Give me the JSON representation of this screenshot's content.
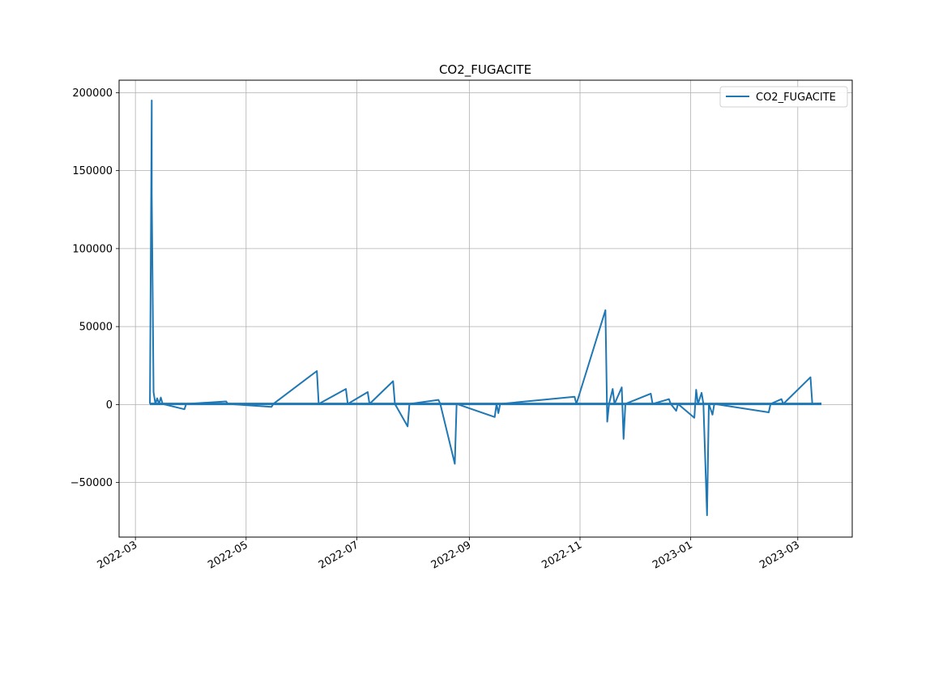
{
  "chart_data": {
    "type": "line",
    "title": "CO2_FUGACITE",
    "xlabel": "",
    "ylabel": "",
    "xlim": [
      "2022-02-20",
      "2023-03-31"
    ],
    "ylim": [
      -85000,
      208000
    ],
    "grid": true,
    "legend_position": "top-right",
    "x_ticks": [
      "2022-03",
      "2022-05",
      "2022-07",
      "2022-09",
      "2022-11",
      "2023-01",
      "2023-03"
    ],
    "x_tick_dates": [
      "2022-03-01",
      "2022-05-01",
      "2022-07-01",
      "2022-09-01",
      "2022-11-01",
      "2023-01-01",
      "2023-03-01"
    ],
    "y_ticks": [
      -50000,
      0,
      50000,
      100000,
      150000,
      200000
    ],
    "series": [
      {
        "name": "CO2_FUGACITE",
        "color": "#1f77b4",
        "points": [
          [
            "2022-03-09",
            400
          ],
          [
            "2022-03-10",
            195000
          ],
          [
            "2022-03-10",
            135000
          ],
          [
            "2022-03-11",
            8000
          ],
          [
            "2022-03-12",
            400
          ],
          [
            "2022-03-13",
            4000
          ],
          [
            "2022-03-14",
            400
          ],
          [
            "2022-03-15",
            4500
          ],
          [
            "2022-03-16",
            400
          ],
          [
            "2022-03-28",
            -3000
          ],
          [
            "2022-03-29",
            400
          ],
          [
            "2022-04-20",
            2000
          ],
          [
            "2022-04-21",
            400
          ],
          [
            "2022-05-15",
            -1500
          ],
          [
            "2022-05-16",
            400
          ],
          [
            "2022-06-09",
            21500
          ],
          [
            "2022-06-10",
            400
          ],
          [
            "2022-06-25",
            10000
          ],
          [
            "2022-06-26",
            400
          ],
          [
            "2022-07-07",
            8000
          ],
          [
            "2022-07-08",
            400
          ],
          [
            "2022-07-21",
            15000
          ],
          [
            "2022-07-22",
            400
          ],
          [
            "2022-07-29",
            -14000
          ],
          [
            "2022-07-30",
            400
          ],
          [
            "2022-08-15",
            3000
          ],
          [
            "2022-08-16",
            400
          ],
          [
            "2022-08-24",
            -38000
          ],
          [
            "2022-08-25",
            400
          ],
          [
            "2022-09-15",
            -8000
          ],
          [
            "2022-09-16",
            400
          ],
          [
            "2022-09-17",
            -5500
          ],
          [
            "2022-09-18",
            400
          ],
          [
            "2022-10-29",
            5000
          ],
          [
            "2022-10-30",
            400
          ],
          [
            "2022-11-15",
            60500
          ],
          [
            "2022-11-16",
            -11000
          ],
          [
            "2022-11-17",
            400
          ],
          [
            "2022-11-19",
            10000
          ],
          [
            "2022-11-20",
            400
          ],
          [
            "2022-11-24",
            11000
          ],
          [
            "2022-11-25",
            -22000
          ],
          [
            "2022-11-26",
            400
          ],
          [
            "2022-12-10",
            7000
          ],
          [
            "2022-12-11",
            400
          ],
          [
            "2022-12-20",
            3500
          ],
          [
            "2022-12-21",
            400
          ],
          [
            "2022-12-24",
            -4000
          ],
          [
            "2022-12-25",
            400
          ],
          [
            "2023-01-03",
            -8500
          ],
          [
            "2023-01-04",
            9500
          ],
          [
            "2023-01-05",
            400
          ],
          [
            "2023-01-07",
            7500
          ],
          [
            "2023-01-08",
            400
          ],
          [
            "2023-01-10",
            -71000
          ],
          [
            "2023-01-11",
            400
          ],
          [
            "2023-01-13",
            -6500
          ],
          [
            "2023-01-14",
            400
          ],
          [
            "2023-02-13",
            -5000
          ],
          [
            "2023-02-14",
            400
          ],
          [
            "2023-02-20",
            3500
          ],
          [
            "2023-02-21",
            400
          ],
          [
            "2023-03-08",
            17500
          ],
          [
            "2023-03-09",
            400
          ],
          [
            "2023-03-14",
            800
          ]
        ]
      }
    ]
  }
}
